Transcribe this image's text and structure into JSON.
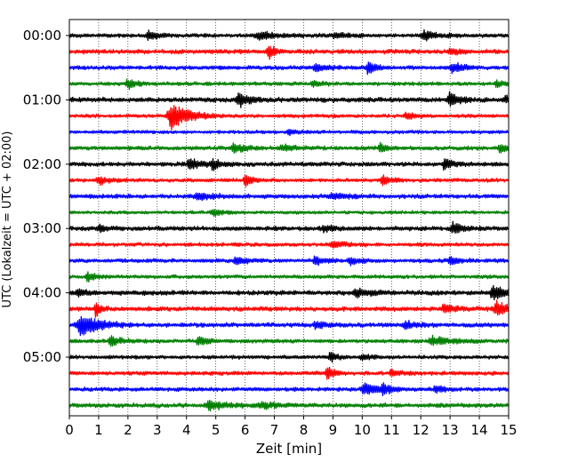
{
  "chart_data": {
    "type": "line",
    "title": "",
    "xlabel": "Zeit  [min]",
    "ylabel": "UTC (Lokalzeit = UTC + 02:00)",
    "xlim": [
      0,
      15
    ],
    "x_ticks": [
      "0",
      "1",
      "2",
      "3",
      "4",
      "5",
      "6",
      "7",
      "8",
      "9",
      "10",
      "11",
      "12",
      "13",
      "14",
      "15"
    ],
    "y_tick_labels": [
      "00:00",
      "01:00",
      "02:00",
      "03:00",
      "04:00",
      "05:00"
    ],
    "rows_per_hour": 4,
    "minutes_per_row": 15,
    "grid": "vertical dotted lines at each minute",
    "color_cycle": [
      "#000000",
      "#ff0000",
      "#0000ff",
      "#008000"
    ],
    "traces": [
      {
        "row": 0,
        "label": "00:00",
        "base_amplitude": 0.18,
        "events": [
          {
            "t": 2.7,
            "amp": 0.55,
            "dur": 0.25
          },
          {
            "t": 6.5,
            "amp": 0.45,
            "dur": 0.5
          },
          {
            "t": 9.1,
            "amp": 0.25,
            "dur": 0.4
          },
          {
            "t": 12.1,
            "amp": 0.5,
            "dur": 0.4
          }
        ]
      },
      {
        "row": 1,
        "label": "",
        "base_amplitude": 0.2,
        "events": [
          {
            "t": 6.8,
            "amp": 0.9,
            "dur": 0.2
          },
          {
            "t": 13.0,
            "amp": 0.3,
            "dur": 0.3
          }
        ]
      },
      {
        "row": 2,
        "label": "",
        "base_amplitude": 0.18,
        "events": [
          {
            "t": 8.4,
            "amp": 0.45,
            "dur": 0.3
          },
          {
            "t": 10.2,
            "amp": 0.6,
            "dur": 0.3
          },
          {
            "t": 13.1,
            "amp": 0.55,
            "dur": 0.35
          }
        ]
      },
      {
        "row": 3,
        "label": "",
        "base_amplitude": 0.17,
        "events": [
          {
            "t": 2.0,
            "amp": 0.55,
            "dur": 0.25
          },
          {
            "t": 8.3,
            "amp": 0.3,
            "dur": 0.3
          },
          {
            "t": 14.6,
            "amp": 0.3,
            "dur": 0.3
          }
        ]
      },
      {
        "row": 4,
        "label": "01:00",
        "base_amplitude": 0.22,
        "events": [
          {
            "t": 5.8,
            "amp": 0.7,
            "dur": 0.35
          },
          {
            "t": 13.0,
            "amp": 0.8,
            "dur": 0.3
          },
          {
            "t": 14.9,
            "amp": 0.4,
            "dur": 0.2
          }
        ]
      },
      {
        "row": 5,
        "label": "",
        "base_amplitude": 0.16,
        "events": [
          {
            "t": 3.5,
            "amp": 1.4,
            "dur": 0.6
          },
          {
            "t": 11.5,
            "amp": 0.35,
            "dur": 0.3
          }
        ]
      },
      {
        "row": 6,
        "label": "",
        "base_amplitude": 0.16,
        "events": [
          {
            "t": 7.5,
            "amp": 0.25,
            "dur": 0.4
          }
        ]
      },
      {
        "row": 7,
        "label": "",
        "base_amplitude": 0.18,
        "events": [
          {
            "t": 5.6,
            "amp": 0.5,
            "dur": 0.35
          },
          {
            "t": 7.3,
            "amp": 0.35,
            "dur": 0.4
          },
          {
            "t": 10.6,
            "amp": 0.5,
            "dur": 0.2
          },
          {
            "t": 14.7,
            "amp": 0.5,
            "dur": 0.3
          }
        ]
      },
      {
        "row": 8,
        "label": "02:00",
        "base_amplitude": 0.2,
        "events": [
          {
            "t": 4.1,
            "amp": 0.6,
            "dur": 0.35
          },
          {
            "t": 4.9,
            "amp": 0.5,
            "dur": 0.3
          },
          {
            "t": 12.8,
            "amp": 0.55,
            "dur": 0.25
          }
        ]
      },
      {
        "row": 9,
        "label": "",
        "base_amplitude": 0.17,
        "events": [
          {
            "t": 1.0,
            "amp": 0.45,
            "dur": 0.3
          },
          {
            "t": 6.0,
            "amp": 0.7,
            "dur": 0.2
          },
          {
            "t": 10.7,
            "amp": 0.45,
            "dur": 0.3
          }
        ]
      },
      {
        "row": 10,
        "label": "",
        "base_amplitude": 0.2,
        "events": [
          {
            "t": 4.4,
            "amp": 0.4,
            "dur": 0.4
          },
          {
            "t": 9.0,
            "amp": 0.3,
            "dur": 0.5
          }
        ]
      },
      {
        "row": 11,
        "label": "",
        "base_amplitude": 0.15,
        "events": [
          {
            "t": 4.9,
            "amp": 0.3,
            "dur": 0.4
          }
        ]
      },
      {
        "row": 12,
        "label": "03:00",
        "base_amplitude": 0.2,
        "events": [
          {
            "t": 1.0,
            "amp": 0.3,
            "dur": 0.3
          },
          {
            "t": 8.7,
            "amp": 0.35,
            "dur": 0.3
          },
          {
            "t": 13.1,
            "amp": 0.55,
            "dur": 0.35
          }
        ]
      },
      {
        "row": 13,
        "label": "",
        "base_amplitude": 0.17,
        "events": [
          {
            "t": 9.0,
            "amp": 0.35,
            "dur": 0.4
          }
        ]
      },
      {
        "row": 14,
        "label": "",
        "base_amplitude": 0.18,
        "events": [
          {
            "t": 5.7,
            "amp": 0.5,
            "dur": 0.3
          },
          {
            "t": 8.4,
            "amp": 0.4,
            "dur": 0.3
          },
          {
            "t": 9.6,
            "amp": 0.45,
            "dur": 0.25
          },
          {
            "t": 13.0,
            "amp": 0.4,
            "dur": 0.3
          }
        ]
      },
      {
        "row": 15,
        "label": "",
        "base_amplitude": 0.17,
        "events": [
          {
            "t": 0.6,
            "amp": 0.55,
            "dur": 0.25
          }
        ]
      },
      {
        "row": 16,
        "label": "04:00",
        "base_amplitude": 0.22,
        "events": [
          {
            "t": 0.3,
            "amp": 0.35,
            "dur": 0.3
          },
          {
            "t": 9.8,
            "amp": 0.45,
            "dur": 0.4
          },
          {
            "t": 14.5,
            "amp": 0.6,
            "dur": 0.6
          }
        ]
      },
      {
        "row": 17,
        "label": "",
        "base_amplitude": 0.2,
        "events": [
          {
            "t": 0.9,
            "amp": 0.9,
            "dur": 0.15
          },
          {
            "t": 12.8,
            "amp": 0.4,
            "dur": 0.4
          },
          {
            "t": 14.6,
            "amp": 0.7,
            "dur": 0.5
          }
        ]
      },
      {
        "row": 18,
        "label": "",
        "base_amplitude": 0.2,
        "events": [
          {
            "t": 0.4,
            "amp": 1.2,
            "dur": 0.6
          },
          {
            "t": 8.4,
            "amp": 0.4,
            "dur": 0.3
          },
          {
            "t": 11.5,
            "amp": 0.35,
            "dur": 0.4
          }
        ]
      },
      {
        "row": 19,
        "label": "",
        "base_amplitude": 0.18,
        "events": [
          {
            "t": 1.4,
            "amp": 0.6,
            "dur": 0.3
          },
          {
            "t": 4.4,
            "amp": 0.55,
            "dur": 0.25
          },
          {
            "t": 12.4,
            "amp": 0.45,
            "dur": 0.6
          }
        ]
      },
      {
        "row": 20,
        "label": "05:00",
        "base_amplitude": 0.17,
        "events": [
          {
            "t": 8.9,
            "amp": 0.55,
            "dur": 0.2
          },
          {
            "t": 10.0,
            "amp": 0.3,
            "dur": 0.3
          }
        ]
      },
      {
        "row": 21,
        "label": "",
        "base_amplitude": 0.18,
        "events": [
          {
            "t": 8.8,
            "amp": 0.8,
            "dur": 0.2
          },
          {
            "t": 11.0,
            "amp": 0.3,
            "dur": 0.3
          }
        ]
      },
      {
        "row": 22,
        "label": "",
        "base_amplitude": 0.18,
        "events": [
          {
            "t": 10.1,
            "amp": 0.65,
            "dur": 0.5
          },
          {
            "t": 10.7,
            "amp": 0.45,
            "dur": 0.3
          },
          {
            "t": 12.5,
            "amp": 0.35,
            "dur": 0.3
          }
        ]
      },
      {
        "row": 23,
        "label": "",
        "base_amplitude": 0.2,
        "events": [
          {
            "t": 4.8,
            "amp": 0.45,
            "dur": 0.5
          },
          {
            "t": 6.6,
            "amp": 0.3,
            "dur": 0.4
          }
        ]
      }
    ]
  }
}
